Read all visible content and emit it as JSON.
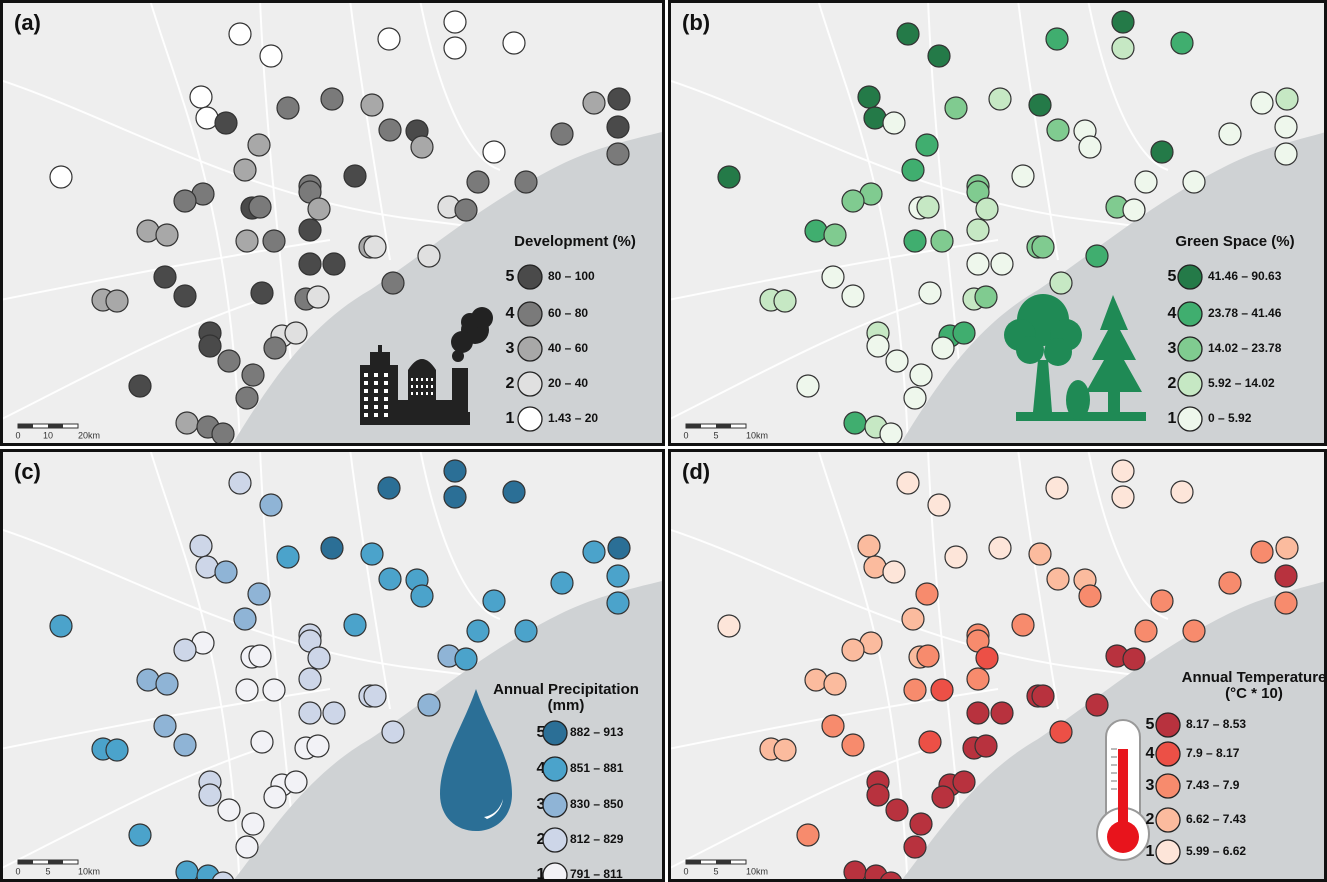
{
  "panels": [
    {
      "label": "(a)",
      "legend_title": [
        "Development (%)"
      ],
      "scale_labels": [
        "0",
        "10",
        "20km"
      ],
      "legend": [
        {
          "class": 5,
          "range": "80 – 100",
          "color": "#4a4a4a"
        },
        {
          "class": 4,
          "range": "60 – 80",
          "color": "#7a7a7a"
        },
        {
          "class": 3,
          "range": "40 – 60",
          "color": "#a8a8a8"
        },
        {
          "class": 2,
          "range": "20 – 40",
          "color": "#e0e0e0"
        },
        {
          "class": 1,
          "range": "1.43 – 20",
          "color": "#ffffff"
        }
      ],
      "classes": [
        1,
        1,
        1,
        1,
        1,
        1,
        1,
        1,
        5,
        4,
        4,
        3,
        4,
        5,
        3,
        3,
        5,
        5,
        4,
        4,
        1,
        1,
        3,
        3,
        4,
        4,
        5,
        4,
        4,
        4,
        4,
        5,
        4,
        3,
        2,
        4,
        3,
        3,
        3,
        4,
        5,
        3,
        2,
        2,
        5,
        5,
        5,
        5,
        3,
        3,
        5,
        4,
        2,
        4,
        5,
        5,
        2,
        2,
        4,
        4,
        4,
        5,
        4,
        3,
        4,
        4
      ]
    },
    {
      "label": "(b)",
      "legend_title": [
        "Green Space (%)"
      ],
      "scale_labels": [
        "0",
        "5",
        "10km"
      ],
      "legend": [
        {
          "class": 5,
          "range": "41.46 – 90.63",
          "color": "#247a48"
        },
        {
          "class": 4,
          "range": "23.78 – 41.46",
          "color": "#40ae6f"
        },
        {
          "class": 3,
          "range": "14.02 – 23.78",
          "color": "#80cb90"
        },
        {
          "class": 2,
          "range": "5.92 – 14.02",
          "color": "#c6e8c4"
        },
        {
          "class": 1,
          "range": "0 – 5.92",
          "color": "#eef7ec"
        }
      ],
      "classes": [
        5,
        5,
        4,
        5,
        2,
        4,
        5,
        5,
        1,
        3,
        2,
        5,
        3,
        1,
        1,
        1,
        2,
        1,
        1,
        1,
        5,
        5,
        4,
        4,
        3,
        3,
        1,
        1,
        1,
        3,
        3,
        1,
        2,
        2,
        3,
        1,
        4,
        3,
        4,
        3,
        2,
        3,
        3,
        4,
        1,
        1,
        1,
        1,
        2,
        2,
        1,
        2,
        3,
        2,
        2,
        1,
        4,
        4,
        1,
        1,
        1,
        1,
        1,
        4,
        2,
        1
      ]
    },
    {
      "label": "(c)",
      "legend_title": [
        "Annual Precipitation",
        "(mm)"
      ],
      "scale_labels": [
        "0",
        "5",
        "10km"
      ],
      "legend": [
        {
          "class": 5,
          "range": "882 – 913",
          "color": "#2b6f96"
        },
        {
          "class": 4,
          "range": "851 – 881",
          "color": "#4ba3cb"
        },
        {
          "class": 3,
          "range": "830 – 850",
          "color": "#8fb4d6"
        },
        {
          "class": 2,
          "range": "812 – 829",
          "color": "#cdd6e8"
        },
        {
          "class": 1,
          "range": "791 – 811",
          "color": "#f2f2f6"
        }
      ],
      "classes": [
        2,
        3,
        5,
        5,
        5,
        5,
        2,
        2,
        3,
        4,
        5,
        4,
        4,
        4,
        4,
        4,
        5,
        4,
        4,
        4,
        4,
        4,
        3,
        3,
        2,
        2,
        4,
        4,
        4,
        1,
        2,
        1,
        1,
        2,
        3,
        4,
        3,
        3,
        1,
        1,
        2,
        2,
        2,
        3,
        2,
        2,
        3,
        3,
        4,
        4,
        1,
        1,
        1,
        2,
        2,
        2,
        1,
        1,
        1,
        1,
        1,
        4,
        1,
        4,
        4,
        2
      ]
    },
    {
      "label": "(d)",
      "legend_title": [
        "Annual Temperature",
        "(°C * 10)"
      ],
      "scale_labels": [
        "0",
        "5",
        "10km"
      ],
      "legend": [
        {
          "class": 5,
          "range": "8.17 – 8.53",
          "color": "#b8323e"
        },
        {
          "class": 4,
          "range": "7.9 – 8.17",
          "color": "#ec5046"
        },
        {
          "class": 3,
          "range": "7.43 – 7.9",
          "color": "#f78b6d"
        },
        {
          "class": 2,
          "range": "6.62 – 7.43",
          "color": "#fbbb9e"
        },
        {
          "class": 1,
          "range": "5.99 – 6.62",
          "color": "#fde5d9"
        }
      ],
      "classes": [
        1,
        1,
        1,
        1,
        1,
        1,
        2,
        2,
        1,
        1,
        1,
        2,
        2,
        2,
        3,
        3,
        2,
        5,
        3,
        3,
        3,
        1,
        3,
        2,
        3,
        3,
        3,
        3,
        3,
        2,
        2,
        2,
        3,
        4,
        5,
        5,
        2,
        2,
        3,
        4,
        3,
        5,
        5,
        5,
        5,
        5,
        3,
        3,
        2,
        2,
        4,
        5,
        5,
        4,
        5,
        5,
        5,
        5,
        5,
        5,
        5,
        3,
        5,
        5,
        5,
        5
      ]
    }
  ]
}
